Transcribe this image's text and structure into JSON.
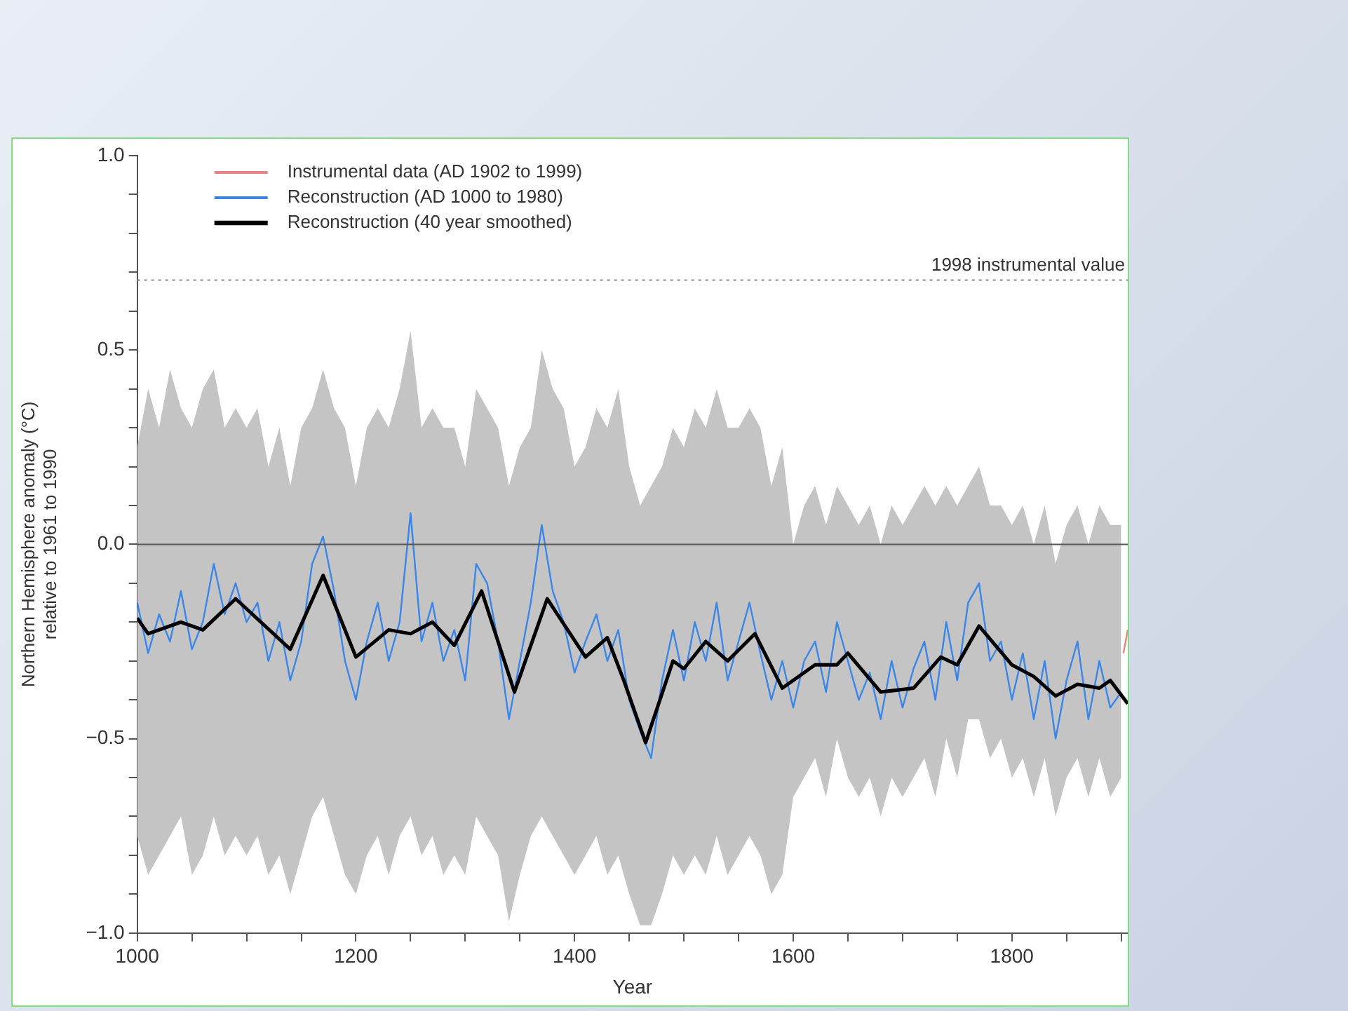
{
  "chart_data": {
    "type": "line",
    "xlabel": "Year",
    "ylabel": "Northern Hemisphere anomaly (°C)\nrelative to 1961 to 1990",
    "x": [
      1000,
      1010,
      1020,
      1030,
      1040,
      1050,
      1060,
      1070,
      1080,
      1090,
      1100,
      1110,
      1120,
      1130,
      1140,
      1150,
      1160,
      1170,
      1180,
      1190,
      1200,
      1210,
      1220,
      1230,
      1240,
      1250,
      1260,
      1270,
      1280,
      1290,
      1300,
      1310,
      1320,
      1330,
      1340,
      1350,
      1360,
      1370,
      1380,
      1390,
      1400,
      1410,
      1420,
      1430,
      1440,
      1450,
      1460,
      1470,
      1480,
      1490,
      1500,
      1510,
      1520,
      1530,
      1540,
      1550,
      1560,
      1570,
      1580,
      1590,
      1600,
      1610,
      1620,
      1630,
      1640,
      1650,
      1660,
      1670,
      1680,
      1690,
      1700,
      1710,
      1720,
      1730,
      1740,
      1750,
      1760,
      1770,
      1780,
      1790,
      1800,
      1810,
      1820,
      1830,
      1840,
      1850,
      1860,
      1870,
      1880,
      1890,
      1900
    ],
    "series": [
      {
        "name": "Instrumental data (AD 1902 to 1999)",
        "color": "#f08080",
        "x": [
          1902,
          1906
        ],
        "values": [
          -0.28,
          -0.22
        ]
      },
      {
        "name": "Reconstruction (AD 1000 to 1980)",
        "color": "#3a86e8",
        "values": [
          -0.15,
          -0.28,
          -0.18,
          -0.25,
          -0.12,
          -0.27,
          -0.2,
          -0.05,
          -0.18,
          -0.1,
          -0.2,
          -0.15,
          -0.3,
          -0.2,
          -0.35,
          -0.25,
          -0.05,
          0.02,
          -0.12,
          -0.3,
          -0.4,
          -0.25,
          -0.15,
          -0.3,
          -0.2,
          0.08,
          -0.25,
          -0.15,
          -0.3,
          -0.22,
          -0.35,
          -0.05,
          -0.1,
          -0.25,
          -0.45,
          -0.3,
          -0.15,
          0.05,
          -0.12,
          -0.2,
          -0.33,
          -0.25,
          -0.18,
          -0.3,
          -0.22,
          -0.4,
          -0.48,
          -0.55,
          -0.35,
          -0.22,
          -0.35,
          -0.2,
          -0.3,
          -0.15,
          -0.35,
          -0.25,
          -0.15,
          -0.28,
          -0.4,
          -0.3,
          -0.42,
          -0.3,
          -0.25,
          -0.38,
          -0.2,
          -0.3,
          -0.4,
          -0.33,
          -0.45,
          -0.3,
          -0.42,
          -0.32,
          -0.25,
          -0.4,
          -0.2,
          -0.35,
          -0.15,
          -0.1,
          -0.3,
          -0.25,
          -0.4,
          -0.28,
          -0.45,
          -0.3,
          -0.5,
          -0.35,
          -0.25,
          -0.45,
          -0.3,
          -0.42,
          -0.38
        ],
        "upper": [
          0.25,
          0.4,
          0.3,
          0.45,
          0.35,
          0.3,
          0.4,
          0.45,
          0.3,
          0.35,
          0.3,
          0.35,
          0.2,
          0.3,
          0.15,
          0.3,
          0.35,
          0.45,
          0.35,
          0.3,
          0.15,
          0.3,
          0.35,
          0.3,
          0.4,
          0.55,
          0.3,
          0.35,
          0.3,
          0.3,
          0.2,
          0.4,
          0.35,
          0.3,
          0.15,
          0.25,
          0.3,
          0.5,
          0.4,
          0.35,
          0.2,
          0.25,
          0.35,
          0.3,
          0.4,
          0.2,
          0.1,
          0.15,
          0.2,
          0.3,
          0.25,
          0.35,
          0.3,
          0.4,
          0.3,
          0.3,
          0.35,
          0.3,
          0.15,
          0.25,
          0.0,
          0.1,
          0.15,
          0.05,
          0.15,
          0.1,
          0.05,
          0.1,
          0.0,
          0.1,
          0.05,
          0.1,
          0.15,
          0.1,
          0.15,
          0.1,
          0.15,
          0.2,
          0.1,
          0.1,
          0.05,
          0.1,
          0.0,
          0.1,
          -0.05,
          0.05,
          0.1,
          0.0,
          0.1,
          0.05,
          0.05
        ],
        "lower": [
          -0.75,
          -0.85,
          -0.8,
          -0.75,
          -0.7,
          -0.85,
          -0.8,
          -0.7,
          -0.8,
          -0.75,
          -0.8,
          -0.75,
          -0.85,
          -0.8,
          -0.9,
          -0.8,
          -0.7,
          -0.65,
          -0.75,
          -0.85,
          -0.9,
          -0.8,
          -0.75,
          -0.85,
          -0.75,
          -0.7,
          -0.8,
          -0.75,
          -0.85,
          -0.8,
          -0.85,
          -0.7,
          -0.75,
          -0.8,
          -0.97,
          -0.85,
          -0.75,
          -0.7,
          -0.75,
          -0.8,
          -0.85,
          -0.8,
          -0.75,
          -0.85,
          -0.8,
          -0.9,
          -0.98,
          -0.98,
          -0.9,
          -0.8,
          -0.85,
          -0.8,
          -0.85,
          -0.75,
          -0.85,
          -0.8,
          -0.75,
          -0.8,
          -0.9,
          -0.85,
          -0.65,
          -0.6,
          -0.55,
          -0.65,
          -0.5,
          -0.6,
          -0.65,
          -0.6,
          -0.7,
          -0.6,
          -0.65,
          -0.6,
          -0.55,
          -0.65,
          -0.5,
          -0.6,
          -0.45,
          -0.45,
          -0.55,
          -0.5,
          -0.6,
          -0.55,
          -0.65,
          -0.55,
          -0.7,
          -0.6,
          -0.55,
          -0.65,
          -0.55,
          -0.65,
          -0.6
        ]
      },
      {
        "name": "Reconstruction (40 year smoothed)",
        "color": "#000000",
        "x": [
          1000,
          1010,
          1040,
          1060,
          1090,
          1140,
          1170,
          1200,
          1230,
          1250,
          1270,
          1290,
          1315,
          1345,
          1375,
          1410,
          1430,
          1445,
          1465,
          1490,
          1500,
          1520,
          1540,
          1565,
          1590,
          1620,
          1640,
          1650,
          1680,
          1710,
          1735,
          1750,
          1770,
          1800,
          1820,
          1840,
          1860,
          1880,
          1890,
          1906
        ],
        "values": [
          -0.19,
          -0.23,
          -0.2,
          -0.22,
          -0.14,
          -0.27,
          -0.08,
          -0.29,
          -0.22,
          -0.23,
          -0.2,
          -0.26,
          -0.12,
          -0.38,
          -0.14,
          -0.29,
          -0.24,
          -0.35,
          -0.51,
          -0.3,
          -0.32,
          -0.25,
          -0.3,
          -0.23,
          -0.37,
          -0.31,
          -0.31,
          -0.28,
          -0.38,
          -0.37,
          -0.29,
          -0.31,
          -0.21,
          -0.31,
          -0.34,
          -0.39,
          -0.36,
          -0.37,
          -0.35,
          -0.41
        ]
      }
    ],
    "xlim": [
      1000,
      1906
    ],
    "xticks": [
      1000,
      {
        "value": 1050,
        "label": null
      },
      {
        "value": 1100,
        "label": null
      },
      {
        "value": 1150,
        "label": null
      },
      1200,
      {
        "value": 1250,
        "label": null
      },
      {
        "value": 1300,
        "label": null
      },
      {
        "value": 1350,
        "label": null
      },
      1400,
      {
        "value": 1450,
        "label": null
      },
      {
        "value": 1500,
        "label": null
      },
      {
        "value": 1550,
        "label": null
      },
      1600,
      {
        "value": 1650,
        "label": null
      },
      {
        "value": 1700,
        "label": null
      },
      {
        "value": 1750,
        "label": null
      },
      1800,
      {
        "value": 1850,
        "label": null
      },
      {
        "value": 1900,
        "label": null
      }
    ],
    "ylim": [
      -1,
      1
    ],
    "yticks": [
      {
        "value": -1,
        "label": "−1.0"
      },
      {
        "value": -0.9,
        "label": null
      },
      {
        "value": -0.8,
        "label": null
      },
      {
        "value": -0.7,
        "label": null
      },
      {
        "value": -0.6,
        "label": null
      },
      {
        "value": -0.5,
        "label": "−0.5"
      },
      {
        "value": -0.4,
        "label": null
      },
      {
        "value": -0.3,
        "label": null
      },
      {
        "value": -0.2,
        "label": null
      },
      {
        "value": -0.1,
        "label": null
      },
      {
        "value": 0,
        "label": "0.0"
      },
      {
        "value": 0.1,
        "label": null
      },
      {
        "value": 0.2,
        "label": null
      },
      {
        "value": 0.3,
        "label": null
      },
      {
        "value": 0.4,
        "label": null
      },
      {
        "value": 0.5,
        "label": "0.5"
      },
      {
        "value": 0.6,
        "label": null
      },
      {
        "value": 0.7,
        "label": null
      },
      {
        "value": 0.8,
        "label": null
      },
      {
        "value": 0.9,
        "label": null
      },
      {
        "value": 1,
        "label": "1.0"
      }
    ],
    "ref_lines": [
      {
        "axis": "y",
        "value": 0.68,
        "label": "1998 instrumental value",
        "line_style": "dotted",
        "color": "#888888"
      },
      {
        "axis": "y",
        "value": 0,
        "color": "#555555",
        "line_style": "solid"
      }
    ],
    "grid": false,
    "legend": "top left",
    "marker": "none",
    "line_style": "solid"
  }
}
